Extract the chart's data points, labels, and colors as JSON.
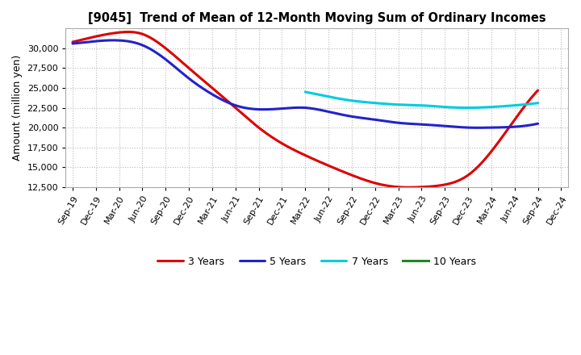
{
  "title": "[9045]  Trend of Mean of 12-Month Moving Sum of Ordinary Incomes",
  "ylabel": "Amount (million yen)",
  "ylim": [
    12500,
    32500
  ],
  "yticks": [
    12500,
    15000,
    17500,
    20000,
    22500,
    25000,
    27500,
    30000
  ],
  "background_color": "#ffffff",
  "plot_background": "#ffffff",
  "grid_color": "#bbbbbb",
  "line_colors": {
    "3yr": "#dd0000",
    "5yr": "#2222cc",
    "7yr": "#00ccdd",
    "10yr": "#228822"
  },
  "line_widths": {
    "3yr": 2.2,
    "5yr": 2.2,
    "7yr": 2.2,
    "10yr": 2.2
  },
  "legend_labels": [
    "3 Years",
    "5 Years",
    "7 Years",
    "10 Years"
  ],
  "x_labels": [
    "Sep-19",
    "Dec-19",
    "Mar-20",
    "Jun-20",
    "Sep-20",
    "Dec-20",
    "Mar-21",
    "Jun-21",
    "Sep-21",
    "Dec-21",
    "Mar-22",
    "Jun-22",
    "Sep-22",
    "Dec-22",
    "Mar-23",
    "Jun-23",
    "Sep-23",
    "Dec-23",
    "Mar-24",
    "Jun-24",
    "Sep-24",
    "Dec-24"
  ],
  "data_3yr": [
    30800,
    31500,
    32000,
    31800,
    30000,
    27500,
    25000,
    22500,
    20000,
    18000,
    16500,
    15200,
    14000,
    13000,
    12500,
    12500,
    12800,
    14000,
    17000,
    21000,
    24700,
    null
  ],
  "data_5yr": [
    30600,
    30900,
    31000,
    30400,
    28600,
    26200,
    24200,
    22800,
    22300,
    22400,
    22500,
    22000,
    21400,
    21000,
    20600,
    20400,
    20200,
    20000,
    20000,
    20100,
    20500,
    null
  ],
  "data_7yr": [
    null,
    null,
    null,
    null,
    null,
    null,
    null,
    null,
    null,
    null,
    24500,
    23900,
    23400,
    23100,
    22900,
    22800,
    22600,
    22500,
    22600,
    22800,
    23100,
    null
  ],
  "data_10yr": [
    null,
    null,
    null,
    null,
    null,
    null,
    null,
    null,
    null,
    null,
    null,
    null,
    null,
    null,
    null,
    null,
    null,
    null,
    null,
    null,
    null,
    null
  ],
  "figsize": [
    7.2,
    4.4
  ],
  "dpi": 100,
  "title_fontsize": 10.5,
  "axis_label_fontsize": 9,
  "tick_fontsize": 8
}
